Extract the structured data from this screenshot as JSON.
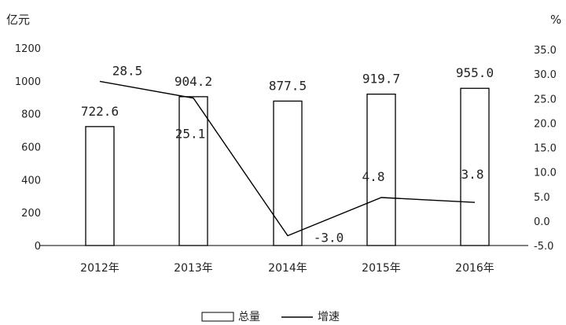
{
  "chart_data": {
    "type": "bar+line",
    "categories": [
      "2012年",
      "2013年",
      "2014年",
      "2015年",
      "2016年"
    ],
    "series": [
      {
        "name": "总量",
        "type": "bar",
        "axis": "left",
        "values": [
          722.6,
          904.2,
          877.5,
          919.7,
          955.0
        ],
        "labels": [
          "722.6",
          "904.2",
          "877.5",
          "919.7",
          "955.0"
        ]
      },
      {
        "name": "增速",
        "type": "line",
        "axis": "right",
        "values": [
          28.5,
          25.1,
          -3.0,
          4.8,
          3.8
        ],
        "labels": [
          "28.5",
          "25.1",
          "-3.0",
          "4.8",
          "3.8"
        ]
      }
    ],
    "y_left": {
      "unit": "亿元",
      "range": [
        0,
        1200
      ],
      "ticks": [
        "0",
        "200",
        "400",
        "600",
        "800",
        "1000",
        "1200"
      ]
    },
    "y_right": {
      "unit": "%",
      "range": [
        -5,
        35
      ],
      "ticks": [
        "-5.0",
        "0.0",
        "5.0",
        "10.0",
        "15.0",
        "20.0",
        "25.0",
        "30.0",
        "35.0"
      ]
    },
    "grid": false,
    "legend_position": "bottom",
    "colors": {
      "bar_fill": "#ffffff",
      "bar_stroke": "#000000",
      "line": "#000000"
    }
  }
}
